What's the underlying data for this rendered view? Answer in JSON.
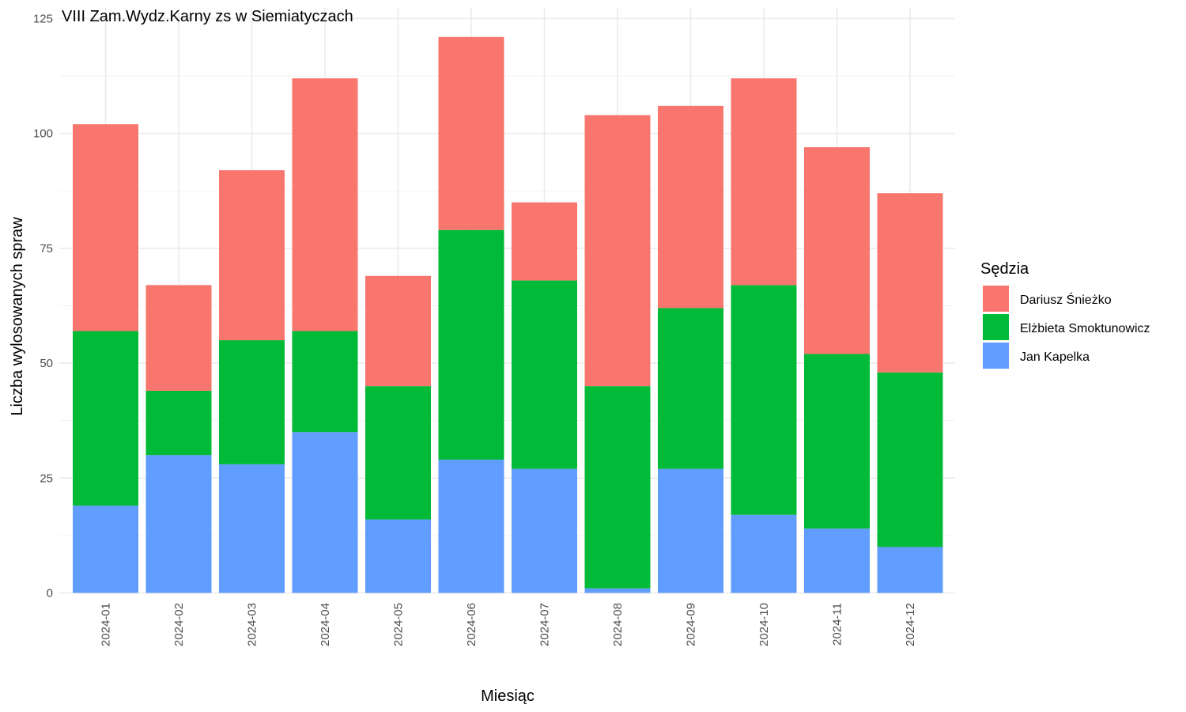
{
  "chart_data": {
    "type": "bar",
    "stacked": true,
    "title": "VIII Zam.Wydz.Karny zs w Siemiatyczach",
    "xlabel": "Miesiąc",
    "ylabel": "Liczba wylosowanych spraw",
    "ylim": [
      0,
      125
    ],
    "yticks": [
      0,
      25,
      50,
      75,
      100,
      125
    ],
    "grid": true,
    "legend": {
      "title": "Sędzia",
      "placement": "right",
      "entries": [
        "Dariusz Śnieżko",
        "Elżbieta Smoktunowicz",
        "Jan Kapelka"
      ]
    },
    "categories": [
      "2024-01",
      "2024-02",
      "2024-03",
      "2024-04",
      "2024-05",
      "2024-06",
      "2024-07",
      "2024-08",
      "2024-09",
      "2024-10",
      "2024-11",
      "2024-12"
    ],
    "series": [
      {
        "name": "Jan Kapelka",
        "color": "#619CFF",
        "values": [
          19,
          30,
          28,
          35,
          16,
          29,
          27,
          1,
          27,
          17,
          14,
          10
        ]
      },
      {
        "name": "Elżbieta Smoktunowicz",
        "color": "#00BA38",
        "values": [
          38,
          14,
          27,
          22,
          29,
          50,
          41,
          44,
          35,
          50,
          38,
          38
        ]
      },
      {
        "name": "Dariusz Śnieżko",
        "color": "#F8766D",
        "values": [
          45,
          23,
          37,
          55,
          24,
          42,
          17,
          59,
          44,
          45,
          45,
          39
        ]
      }
    ]
  }
}
